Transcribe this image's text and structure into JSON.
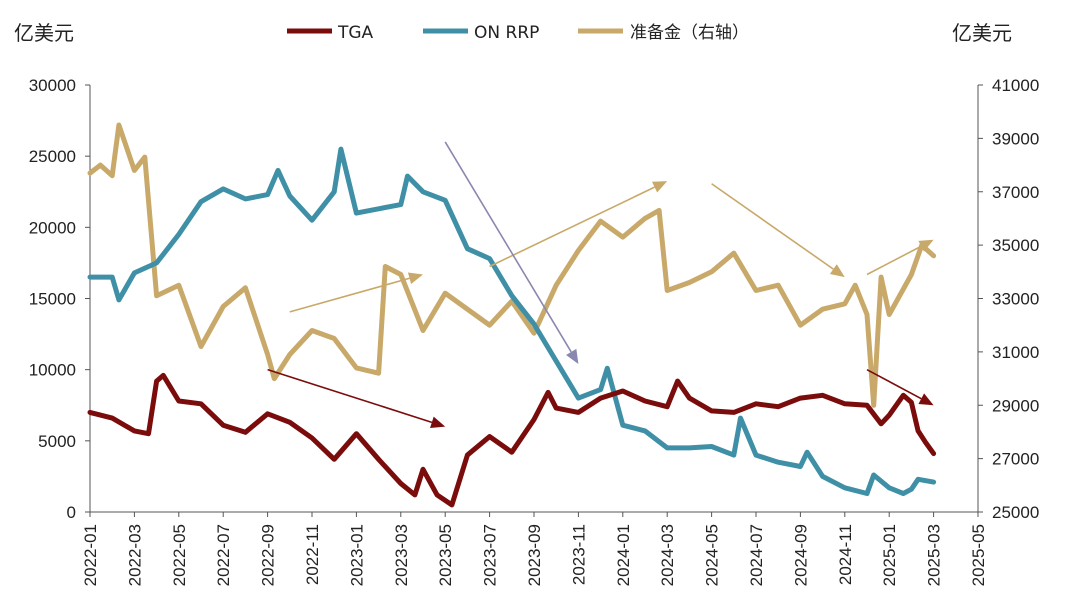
{
  "chart_data": {
    "type": "line",
    "title": "",
    "left_axis_label": "亿美元",
    "right_axis_label": "亿美元",
    "left_ylim": [
      0,
      30000
    ],
    "right_ylim": [
      25000,
      41000
    ],
    "left_ticks": [
      "0",
      "5000",
      "10000",
      "15000",
      "20000",
      "25000",
      "30000"
    ],
    "right_ticks": [
      "25000",
      "27000",
      "29000",
      "31000",
      "33000",
      "35000",
      "37000",
      "39000",
      "41000"
    ],
    "x_range": [
      "2022-01",
      "2025-05"
    ],
    "x_ticks": [
      "2022-01",
      "2022-03",
      "2022-05",
      "2022-07",
      "2022-09",
      "2022-11",
      "2023-01",
      "2023-03",
      "2023-05",
      "2023-07",
      "2023-09",
      "2023-11",
      "2024-01",
      "2024-03",
      "2024-05",
      "2024-07",
      "2024-09",
      "2024-11",
      "2025-01",
      "2025-03",
      "2025-05"
    ],
    "legend": [
      "TGA",
      "ON RRP",
      "准备金（右轴）"
    ],
    "colors": {
      "TGA": "#7b0c0c",
      "ON RRP": "#3f90a6",
      "reserves": "#c8a96a",
      "arrow_purple": "#8a88b0"
    },
    "series": [
      {
        "name": "TGA",
        "axis": "left",
        "points": [
          [
            "2022-01",
            7000
          ],
          [
            "2022-02",
            6600
          ],
          [
            "2022-03",
            5700
          ],
          [
            "2022-03-20",
            5500
          ],
          [
            "2022-04",
            9200
          ],
          [
            "2022-04-10",
            9600
          ],
          [
            "2022-05",
            7800
          ],
          [
            "2022-06",
            7600
          ],
          [
            "2022-07",
            6100
          ],
          [
            "2022-08",
            5600
          ],
          [
            "2022-09",
            6900
          ],
          [
            "2022-10",
            6300
          ],
          [
            "2022-11",
            5200
          ],
          [
            "2022-12",
            3700
          ],
          [
            "2023-01",
            5500
          ],
          [
            "2023-02",
            3700
          ],
          [
            "2023-03",
            2000
          ],
          [
            "2023-03-20",
            1200
          ],
          [
            "2023-04",
            3000
          ],
          [
            "2023-04-20",
            1200
          ],
          [
            "2023-05-10",
            500
          ],
          [
            "2023-06",
            4000
          ],
          [
            "2023-07",
            5300
          ],
          [
            "2023-08",
            4200
          ],
          [
            "2023-09",
            6500
          ],
          [
            "2023-09-20",
            8400
          ],
          [
            "2023-10",
            7300
          ],
          [
            "2023-11",
            7000
          ],
          [
            "2023-12",
            8000
          ],
          [
            "2024-01",
            8500
          ],
          [
            "2024-02",
            7800
          ],
          [
            "2024-03",
            7400
          ],
          [
            "2024-03-15",
            9200
          ],
          [
            "2024-04",
            8000
          ],
          [
            "2024-05",
            7100
          ],
          [
            "2024-06",
            7000
          ],
          [
            "2024-07",
            7600
          ],
          [
            "2024-08",
            7400
          ],
          [
            "2024-09",
            8000
          ],
          [
            "2024-10",
            8200
          ],
          [
            "2024-11",
            7600
          ],
          [
            "2024-12",
            7500
          ],
          [
            "2024-12-20",
            6200
          ],
          [
            "2025-01",
            6800
          ],
          [
            "2025-01-20",
            8200
          ],
          [
            "2025-02",
            7700
          ],
          [
            "2025-02-10",
            5700
          ],
          [
            "2025-02-20",
            4900
          ],
          [
            "2025-03",
            4100
          ]
        ]
      },
      {
        "name": "ON RRP",
        "axis": "left",
        "points": [
          [
            "2022-01",
            16500
          ],
          [
            "2022-02",
            16500
          ],
          [
            "2022-02-10",
            14900
          ],
          [
            "2022-03",
            16800
          ],
          [
            "2022-04",
            17500
          ],
          [
            "2022-05",
            19500
          ],
          [
            "2022-06",
            21800
          ],
          [
            "2022-07",
            22700
          ],
          [
            "2022-08",
            22000
          ],
          [
            "2022-09",
            22300
          ],
          [
            "2022-09-15",
            24000
          ],
          [
            "2022-10",
            22200
          ],
          [
            "2022-11",
            20500
          ],
          [
            "2022-12",
            22500
          ],
          [
            "2022-12-10",
            25500
          ],
          [
            "2023-01",
            21000
          ],
          [
            "2023-02",
            21300
          ],
          [
            "2023-03",
            21600
          ],
          [
            "2023-03-10",
            23600
          ],
          [
            "2023-04",
            22500
          ],
          [
            "2023-05",
            21900
          ],
          [
            "2023-06",
            18500
          ],
          [
            "2023-07",
            17800
          ],
          [
            "2023-08",
            15200
          ],
          [
            "2023-09",
            13200
          ],
          [
            "2023-10",
            10600
          ],
          [
            "2023-11",
            8000
          ],
          [
            "2023-12",
            8600
          ],
          [
            "2023-12-10",
            10100
          ],
          [
            "2024-01",
            6100
          ],
          [
            "2024-02",
            5700
          ],
          [
            "2024-03",
            4500
          ],
          [
            "2024-04",
            4500
          ],
          [
            "2024-05",
            4600
          ],
          [
            "2024-06",
            4000
          ],
          [
            "2024-06-10",
            6600
          ],
          [
            "2024-07",
            4000
          ],
          [
            "2024-08",
            3500
          ],
          [
            "2024-09",
            3200
          ],
          [
            "2024-09-10",
            4200
          ],
          [
            "2024-10",
            2500
          ],
          [
            "2024-11",
            1700
          ],
          [
            "2024-12",
            1300
          ],
          [
            "2024-12-10",
            2600
          ],
          [
            "2025-01",
            1700
          ],
          [
            "2025-01-20",
            1300
          ],
          [
            "2025-02",
            1600
          ],
          [
            "2025-02-10",
            2300
          ],
          [
            "2025-03",
            2100
          ]
        ]
      },
      {
        "name": "准备金（右轴）",
        "axis": "right",
        "points": [
          [
            "2022-01",
            37700
          ],
          [
            "2022-01-15",
            38000
          ],
          [
            "2022-02",
            37600
          ],
          [
            "2022-02-10",
            39500
          ],
          [
            "2022-03",
            37800
          ],
          [
            "2022-03-15",
            38300
          ],
          [
            "2022-04",
            33100
          ],
          [
            "2022-05",
            33500
          ],
          [
            "2022-06",
            31200
          ],
          [
            "2022-07",
            32700
          ],
          [
            "2022-08",
            33400
          ],
          [
            "2022-09",
            30900
          ],
          [
            "2022-09-10",
            30000
          ],
          [
            "2022-10",
            30900
          ],
          [
            "2022-11",
            31800
          ],
          [
            "2022-12",
            31500
          ],
          [
            "2023-01",
            30400
          ],
          [
            "2023-02",
            30200
          ],
          [
            "2023-02-10",
            34200
          ],
          [
            "2023-03",
            33900
          ],
          [
            "2023-04",
            31800
          ],
          [
            "2023-05",
            33200
          ],
          [
            "2023-06",
            32600
          ],
          [
            "2023-07",
            32000
          ],
          [
            "2023-08",
            32900
          ],
          [
            "2023-09",
            31700
          ],
          [
            "2023-10",
            33500
          ],
          [
            "2023-11",
            34800
          ],
          [
            "2023-12",
            35900
          ],
          [
            "2024-01",
            35300
          ],
          [
            "2024-02",
            36000
          ],
          [
            "2024-02-20",
            36300
          ],
          [
            "2024-03",
            33300
          ],
          [
            "2024-04",
            33600
          ],
          [
            "2024-05",
            34000
          ],
          [
            "2024-06",
            34700
          ],
          [
            "2024-07",
            33300
          ],
          [
            "2024-08",
            33500
          ],
          [
            "2024-09",
            32000
          ],
          [
            "2024-10",
            32600
          ],
          [
            "2024-11",
            32800
          ],
          [
            "2024-11-15",
            33500
          ],
          [
            "2024-12",
            32400
          ],
          [
            "2024-12-10",
            29000
          ],
          [
            "2024-12-20",
            33800
          ],
          [
            "2025-01",
            32400
          ],
          [
            "2025-02",
            33900
          ],
          [
            "2025-02-15",
            35000
          ],
          [
            "2025-03",
            34600
          ]
        ]
      }
    ],
    "annotations": [
      {
        "type": "arrow",
        "color": "reserves",
        "axis": "right",
        "from": [
          "2022-10",
          32500
        ],
        "to": [
          "2023-04",
          33900
        ]
      },
      {
        "type": "arrow",
        "color": "reserves",
        "axis": "right",
        "from": [
          "2023-07",
          34200
        ],
        "to": [
          "2024-03",
          37400
        ]
      },
      {
        "type": "arrow",
        "color": "reserves",
        "axis": "right",
        "from": [
          "2024-05",
          37300
        ],
        "to": [
          "2024-11",
          33800
        ]
      },
      {
        "type": "arrow",
        "color": "reserves",
        "axis": "right",
        "from": [
          "2024-12",
          33900
        ],
        "to": [
          "2025-03",
          35200
        ]
      },
      {
        "type": "arrow",
        "color": "TGA",
        "axis": "left",
        "from": [
          "2022-09",
          10000
        ],
        "to": [
          "2023-05",
          6000
        ]
      },
      {
        "type": "arrow",
        "color": "TGA",
        "axis": "left",
        "from": [
          "2024-12",
          10000
        ],
        "to": [
          "2025-03",
          7500
        ]
      },
      {
        "type": "arrow",
        "color": "arrow_purple",
        "axis": "left",
        "from": [
          "2023-05",
          26000
        ],
        "to": [
          "2023-11",
          10400
        ]
      }
    ]
  }
}
